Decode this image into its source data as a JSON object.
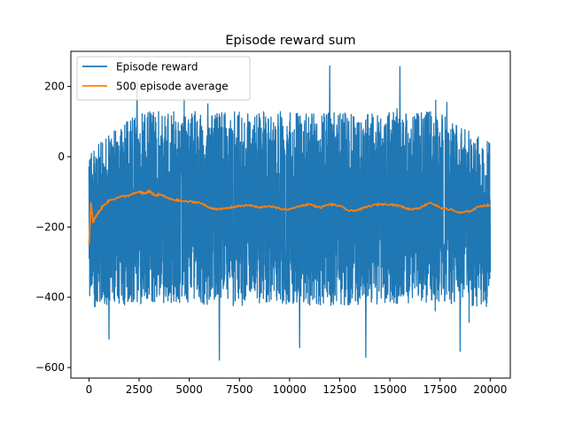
{
  "chart_data": {
    "type": "line",
    "title": "Episode reward sum",
    "xlabel": "",
    "ylabel": "",
    "xlim": [
      -900,
      21000
    ],
    "ylim": [
      -630,
      300
    ],
    "xticks": [
      0,
      2500,
      5000,
      7500,
      10000,
      12500,
      15000,
      17500,
      20000
    ],
    "xtick_labels": [
      "0",
      "2500",
      "5000",
      "7500",
      "10000",
      "12500",
      "15000",
      "17500",
      "20000"
    ],
    "yticks": [
      -600,
      -400,
      -200,
      0,
      200
    ],
    "ytick_labels": [
      "−600",
      "−400",
      "−200",
      "0",
      "200"
    ],
    "grid": false,
    "legend_position": "top-left",
    "series": [
      {
        "name": "Episode reward",
        "color": "#1f77b4",
        "kind": "noisy",
        "x_range": [
          0,
          20000
        ],
        "band_low": [
          [
            0,
            -430
          ],
          [
            2500,
            -420
          ],
          [
            5000,
            -420
          ],
          [
            7500,
            -430
          ],
          [
            10000,
            -420
          ],
          [
            12500,
            -430
          ],
          [
            15000,
            -420
          ],
          [
            17500,
            -420
          ],
          [
            20000,
            -430
          ]
        ],
        "band_high": [
          [
            0,
            20
          ],
          [
            2500,
            130
          ],
          [
            5000,
            130
          ],
          [
            7500,
            130
          ],
          [
            10000,
            130
          ],
          [
            12500,
            130
          ],
          [
            15000,
            130
          ],
          [
            17500,
            130
          ],
          [
            20000,
            40
          ]
        ],
        "spikes": [
          [
            2400,
            215
          ],
          [
            12000,
            260
          ],
          [
            15500,
            258
          ],
          [
            6500,
            -580
          ],
          [
            13800,
            -572
          ],
          [
            18500,
            -555
          ],
          [
            1000,
            -520
          ],
          [
            10500,
            -545
          ]
        ]
      },
      {
        "name": "500 episode average",
        "color": "#ff7f0e",
        "kind": "line",
        "x": [
          0,
          100,
          200,
          400,
          700,
          1000,
          1500,
          2000,
          2500,
          2800,
          3000,
          3300,
          3600,
          4000,
          4500,
          5000,
          5500,
          6000,
          6500,
          7000,
          7500,
          8000,
          8500,
          9000,
          9500,
          10000,
          10500,
          11000,
          11500,
          12000,
          12500,
          13000,
          13500,
          14000,
          14500,
          15000,
          15500,
          16000,
          16500,
          17000,
          17500,
          18000,
          18500,
          19000,
          19500,
          20000
        ],
        "values": [
          -250,
          -130,
          -185,
          -165,
          -140,
          -125,
          -115,
          -110,
          -100,
          -105,
          -98,
          -110,
          -108,
          -120,
          -125,
          -128,
          -130,
          -145,
          -150,
          -145,
          -140,
          -138,
          -145,
          -140,
          -148,
          -150,
          -140,
          -135,
          -145,
          -135,
          -140,
          -155,
          -150,
          -140,
          -135,
          -135,
          -140,
          -150,
          -145,
          -130,
          -145,
          -150,
          -160,
          -155,
          -140,
          -138
        ]
      }
    ]
  }
}
